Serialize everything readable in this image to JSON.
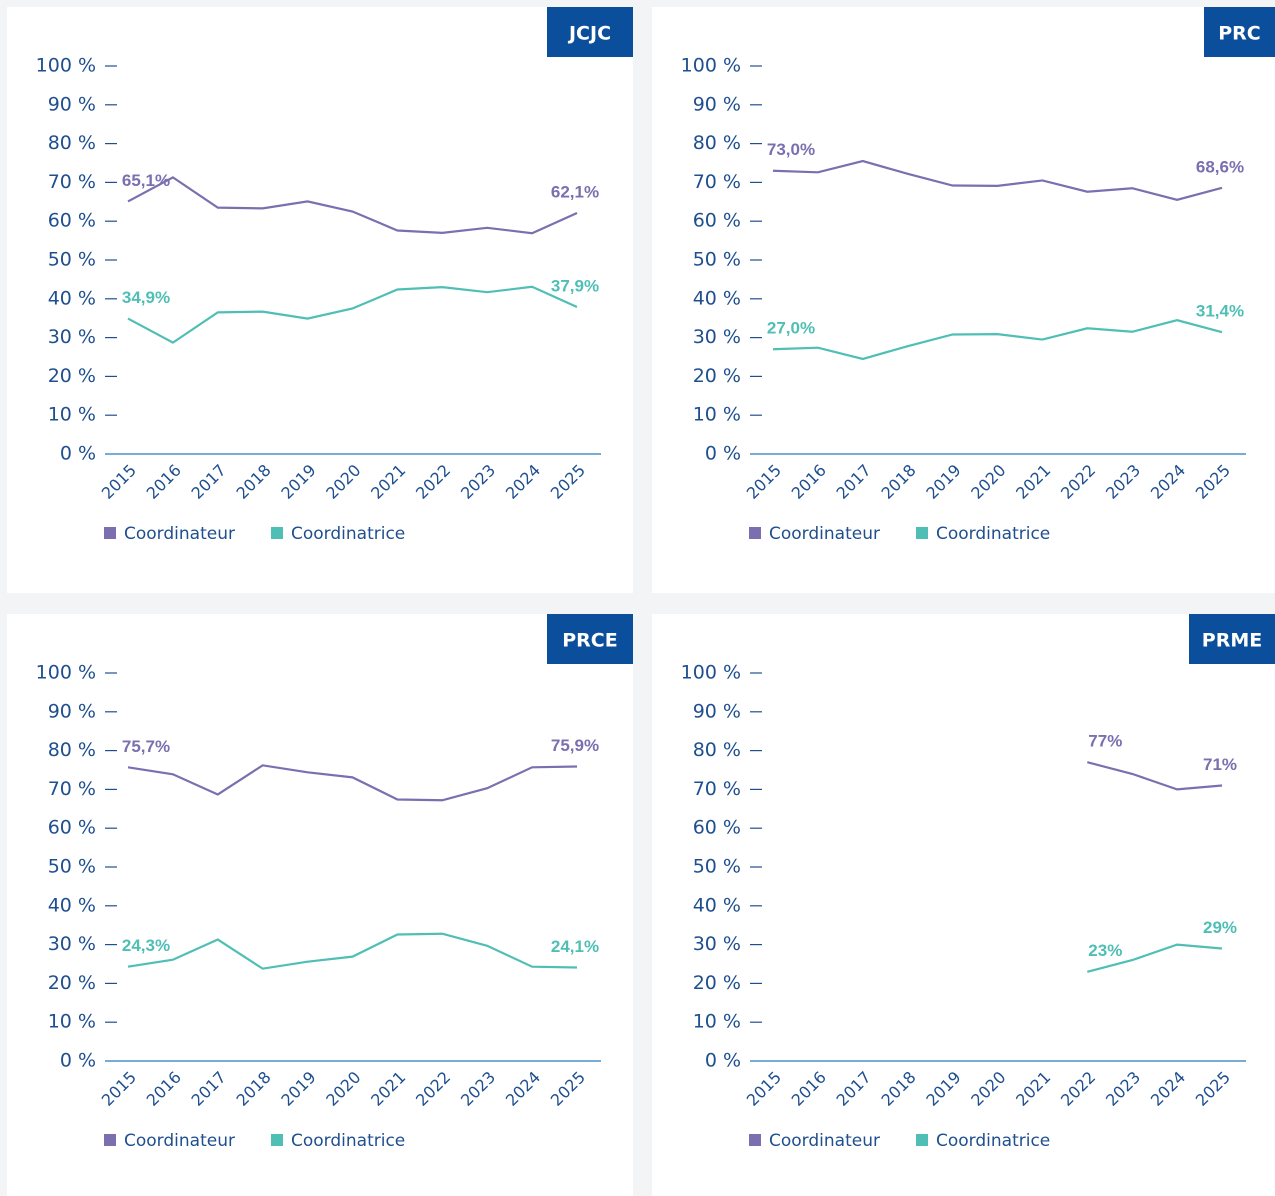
{
  "chart_data": [
    {
      "type": "line",
      "title": "JCJC",
      "categories": [
        "2015",
        "2016",
        "2017",
        "2018",
        "2019",
        "2020",
        "2021",
        "2022",
        "2023",
        "2024",
        "2025"
      ],
      "series": [
        {
          "name": "Coordinateur",
          "color": "#7b6fb0",
          "values": [
            65.1,
            71.3,
            63.5,
            63.3,
            65.1,
            62.5,
            57.6,
            57.0,
            58.3,
            56.9,
            62.1
          ],
          "value_labels": [
            "65,1%",
            null,
            null,
            null,
            null,
            null,
            null,
            null,
            null,
            null,
            "62,1%"
          ]
        },
        {
          "name": "Coordinatrice",
          "color": "#4fbfb5",
          "values": [
            34.9,
            28.7,
            36.5,
            36.7,
            34.9,
            37.5,
            42.4,
            43.0,
            41.7,
            43.1,
            37.9
          ],
          "value_labels": [
            "34,9%",
            null,
            null,
            null,
            null,
            null,
            null,
            null,
            null,
            null,
            "37,9%"
          ]
        }
      ],
      "ylim": [
        0,
        100
      ],
      "yticks": [
        {
          "value": 0,
          "label": "0 %"
        },
        {
          "value": 10,
          "label": "10 %"
        },
        {
          "value": 20,
          "label": "20 %"
        },
        {
          "value": 30,
          "label": "30 %"
        },
        {
          "value": 40,
          "label": "40 %"
        },
        {
          "value": 50,
          "label": "50 %"
        },
        {
          "value": 60,
          "label": "60 %"
        },
        {
          "value": 70,
          "label": "70 %"
        },
        {
          "value": 80,
          "label": "80 %"
        },
        {
          "value": 90,
          "label": "90 %"
        },
        {
          "value": 100,
          "label": "100 %"
        }
      ]
    },
    {
      "type": "line",
      "title": "PRC",
      "categories": [
        "2015",
        "2016",
        "2017",
        "2018",
        "2019",
        "2020",
        "2021",
        "2022",
        "2023",
        "2024",
        "2025"
      ],
      "series": [
        {
          "name": "Coordinateur",
          "color": "#7b6fb0",
          "values": [
            73.0,
            72.6,
            75.5,
            72.2,
            69.2,
            69.1,
            70.5,
            67.6,
            68.5,
            65.5,
            68.6
          ],
          "value_labels": [
            "73,0%",
            null,
            null,
            null,
            null,
            null,
            null,
            null,
            null,
            null,
            "68,6%"
          ]
        },
        {
          "name": "Coordinatrice",
          "color": "#4fbfb5",
          "values": [
            27.0,
            27.4,
            24.5,
            27.8,
            30.8,
            30.9,
            29.5,
            32.4,
            31.5,
            34.5,
            31.4
          ],
          "value_labels": [
            "27,0%",
            null,
            null,
            null,
            null,
            null,
            null,
            null,
            null,
            null,
            "31,4%"
          ]
        }
      ],
      "ylim": [
        0,
        100
      ],
      "yticks": [
        {
          "value": 0,
          "label": "0 %"
        },
        {
          "value": 10,
          "label": "10 %"
        },
        {
          "value": 20,
          "label": "20 %"
        },
        {
          "value": 30,
          "label": "30 %"
        },
        {
          "value": 40,
          "label": "40 %"
        },
        {
          "value": 50,
          "label": "50 %"
        },
        {
          "value": 60,
          "label": "60 %"
        },
        {
          "value": 70,
          "label": "70 %"
        },
        {
          "value": 80,
          "label": "80 %"
        },
        {
          "value": 90,
          "label": "90 %"
        },
        {
          "value": 100,
          "label": "100 %"
        }
      ]
    },
    {
      "type": "line",
      "title": "PRCE",
      "categories": [
        "2015",
        "2016",
        "2017",
        "2018",
        "2019",
        "2020",
        "2021",
        "2022",
        "2023",
        "2024",
        "2025"
      ],
      "series": [
        {
          "name": "Coordinateur",
          "color": "#7b6fb0",
          "values": [
            75.7,
            73.9,
            68.7,
            76.2,
            74.4,
            73.1,
            67.4,
            67.2,
            70.3,
            75.7,
            75.9
          ],
          "value_labels": [
            "75,7%",
            null,
            null,
            null,
            null,
            null,
            null,
            null,
            null,
            null,
            "75,9%"
          ]
        },
        {
          "name": "Coordinatrice",
          "color": "#4fbfb5",
          "values": [
            24.3,
            26.1,
            31.3,
            23.8,
            25.6,
            26.9,
            32.6,
            32.8,
            29.7,
            24.3,
            24.1
          ],
          "value_labels": [
            "24,3%",
            null,
            null,
            null,
            null,
            null,
            null,
            null,
            null,
            null,
            "24,1%"
          ]
        }
      ],
      "ylim": [
        0,
        100
      ],
      "yticks": [
        {
          "value": 0,
          "label": "0 %"
        },
        {
          "value": 10,
          "label": "10 %"
        },
        {
          "value": 20,
          "label": "20 %"
        },
        {
          "value": 30,
          "label": "30 %"
        },
        {
          "value": 40,
          "label": "40 %"
        },
        {
          "value": 50,
          "label": "50 %"
        },
        {
          "value": 60,
          "label": "60 %"
        },
        {
          "value": 70,
          "label": "70 %"
        },
        {
          "value": 80,
          "label": "80 %"
        },
        {
          "value": 90,
          "label": "90 %"
        },
        {
          "value": 100,
          "label": "100 %"
        }
      ]
    },
    {
      "type": "line",
      "title": "PRME",
      "categories": [
        "2015",
        "2016",
        "2017",
        "2018",
        "2019",
        "2020",
        "2021",
        "2022",
        "2023",
        "2024",
        "2025"
      ],
      "series": [
        {
          "name": "Coordinateur",
          "color": "#7b6fb0",
          "values": [
            null,
            null,
            null,
            null,
            null,
            null,
            null,
            77,
            74,
            70,
            71
          ],
          "value_labels": [
            null,
            null,
            null,
            null,
            null,
            null,
            null,
            "77%",
            null,
            null,
            "71%"
          ]
        },
        {
          "name": "Coordinatrice",
          "color": "#4fbfb5",
          "values": [
            null,
            null,
            null,
            null,
            null,
            null,
            null,
            23,
            26,
            30,
            29
          ],
          "value_labels": [
            null,
            null,
            null,
            null,
            null,
            null,
            null,
            "23%",
            null,
            null,
            "29%"
          ]
        }
      ],
      "ylim": [
        0,
        100
      ],
      "yticks": [
        {
          "value": 0,
          "label": "0 %"
        },
        {
          "value": 10,
          "label": "10 %"
        },
        {
          "value": 20,
          "label": "20 %"
        },
        {
          "value": 30,
          "label": "30 %"
        },
        {
          "value": 40,
          "label": "40 %"
        },
        {
          "value": 50,
          "label": "50 %"
        },
        {
          "value": 60,
          "label": "60 %"
        },
        {
          "value": 70,
          "label": "70 %"
        },
        {
          "value": 80,
          "label": "80 %"
        },
        {
          "value": 90,
          "label": "90 %"
        },
        {
          "value": 100,
          "label": "100 %"
        }
      ]
    }
  ]
}
